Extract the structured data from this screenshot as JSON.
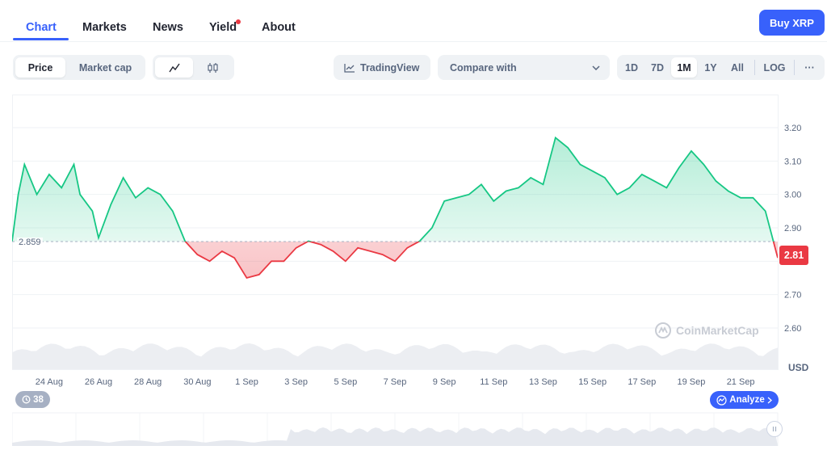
{
  "nav": {
    "tabs": [
      {
        "label": "Chart",
        "active": true
      },
      {
        "label": "Markets",
        "active": false
      },
      {
        "label": "News",
        "active": false
      },
      {
        "label": "Yield",
        "active": false
      },
      {
        "label": "About",
        "active": false
      }
    ],
    "buy_label": "Buy XRP"
  },
  "toolbar": {
    "metric_tabs": [
      "Price",
      "Market cap"
    ],
    "selected_metric": "Price",
    "chart_types": [
      "line-chart-icon",
      "candlestick-icon"
    ],
    "tradingview_label": "TradingView",
    "compare_placeholder": "Compare with",
    "ranges": [
      "1D",
      "7D",
      "1M",
      "1Y",
      "All"
    ],
    "selected_range": "1M",
    "log_label": "LOG",
    "more_label": "···"
  },
  "chart_data": {
    "type": "area",
    "y_ticks": [
      "3.20",
      "3.10",
      "3.00",
      "2.90",
      "2.80",
      "2.70",
      "2.60"
    ],
    "ylim": [
      2.6,
      3.2
    ],
    "x_ticks": [
      "24 Aug",
      "26 Aug",
      "28 Aug",
      "30 Aug",
      "1 Sep",
      "3 Sep",
      "5 Sep",
      "7 Sep",
      "9 Sep",
      "11 Sep",
      "13 Sep",
      "15 Sep",
      "17 Sep",
      "19 Sep",
      "21 Sep"
    ],
    "xlim": [
      "2025-08-22T12:00",
      "2025-09-22T12:00"
    ],
    "reference_price": "2.859",
    "current_price": "2.81",
    "currency": "USD",
    "colors": {
      "up": "#16c784",
      "down": "#ea3943"
    },
    "series": [
      {
        "x": [
          "2025-08-22T12:00",
          "2025-08-22T18:00",
          "2025-08-23T00:00",
          "2025-08-23T12:00",
          "2025-08-24T00:00",
          "2025-08-24T12:00",
          "2025-08-25T00:00",
          "2025-08-25T06:00",
          "2025-08-25T18:00",
          "2025-08-26T00:00",
          "2025-08-26T12:00",
          "2025-08-27T00:00",
          "2025-08-27T12:00",
          "2025-08-28T00:00",
          "2025-08-28T12:00",
          "2025-08-29T00:00",
          "2025-08-29T12:00",
          "2025-08-30T00:00",
          "2025-08-30T12:00",
          "2025-08-31T00:00",
          "2025-08-31T12:00",
          "2025-09-01T00:00",
          "2025-09-01T12:00",
          "2025-09-02T00:00",
          "2025-09-02T12:00",
          "2025-09-03T00:00",
          "2025-09-03T12:00",
          "2025-09-04T00:00",
          "2025-09-04T12:00",
          "2025-09-05T00:00",
          "2025-09-05T12:00",
          "2025-09-06T00:00",
          "2025-09-06T12:00",
          "2025-09-07T00:00",
          "2025-09-07T12:00",
          "2025-09-08T00:00",
          "2025-09-08T12:00",
          "2025-09-09T00:00",
          "2025-09-09T12:00",
          "2025-09-10T00:00",
          "2025-09-10T12:00",
          "2025-09-11T00:00",
          "2025-09-11T12:00",
          "2025-09-12T00:00",
          "2025-09-12T12:00",
          "2025-09-13T00:00",
          "2025-09-13T12:00",
          "2025-09-14T00:00",
          "2025-09-14T12:00",
          "2025-09-15T00:00",
          "2025-09-15T12:00",
          "2025-09-16T00:00",
          "2025-09-16T12:00",
          "2025-09-17T00:00",
          "2025-09-17T12:00",
          "2025-09-18T00:00",
          "2025-09-18T12:00",
          "2025-09-19T00:00",
          "2025-09-19T12:00",
          "2025-09-20T00:00",
          "2025-09-20T12:00",
          "2025-09-21T00:00",
          "2025-09-21T12:00",
          "2025-09-22T00:00",
          "2025-09-22T06:00",
          "2025-09-22T12:00"
        ],
        "y": [
          2.86,
          3.0,
          3.09,
          3.0,
          3.06,
          3.02,
          3.09,
          3.0,
          2.95,
          2.87,
          2.97,
          3.05,
          2.99,
          3.02,
          3.0,
          2.95,
          2.86,
          2.82,
          2.8,
          2.83,
          2.81,
          2.75,
          2.76,
          2.8,
          2.8,
          2.84,
          2.86,
          2.85,
          2.83,
          2.8,
          2.84,
          2.83,
          2.82,
          2.8,
          2.84,
          2.86,
          2.9,
          2.98,
          2.99,
          3.0,
          3.03,
          2.98,
          3.01,
          3.02,
          3.05,
          3.03,
          3.17,
          3.14,
          3.09,
          3.07,
          3.05,
          3.0,
          3.02,
          3.06,
          3.04,
          3.02,
          3.08,
          3.13,
          3.09,
          3.04,
          3.01,
          2.99,
          2.99,
          2.95,
          2.88,
          2.81
        ]
      }
    ]
  }
}
